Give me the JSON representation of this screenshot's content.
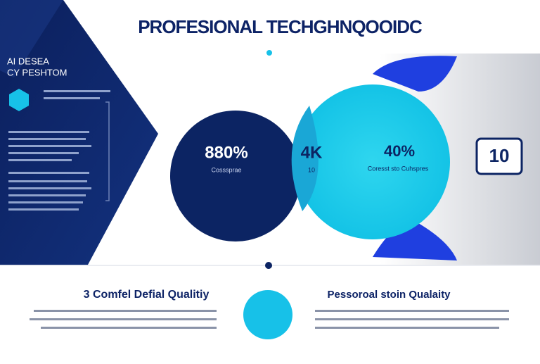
{
  "header": {
    "title": "PROFESIONAL TECHGHNQOOIDC"
  },
  "sidebar": {
    "heading_lines": [
      "AI DESEA",
      "CY PESHTOM"
    ]
  },
  "stats": [
    {
      "value": "880%",
      "label": "Cosssprae"
    },
    {
      "value": "4K",
      "label": "10"
    },
    {
      "value": "40%",
      "label": "Coresst sto Cuhspres"
    }
  ],
  "badge": {
    "value": "10"
  },
  "sections": [
    {
      "title": "3 Comfel Defial Qualitiy"
    },
    {
      "title": "Pessoroal stoin Qualaity"
    }
  ]
}
